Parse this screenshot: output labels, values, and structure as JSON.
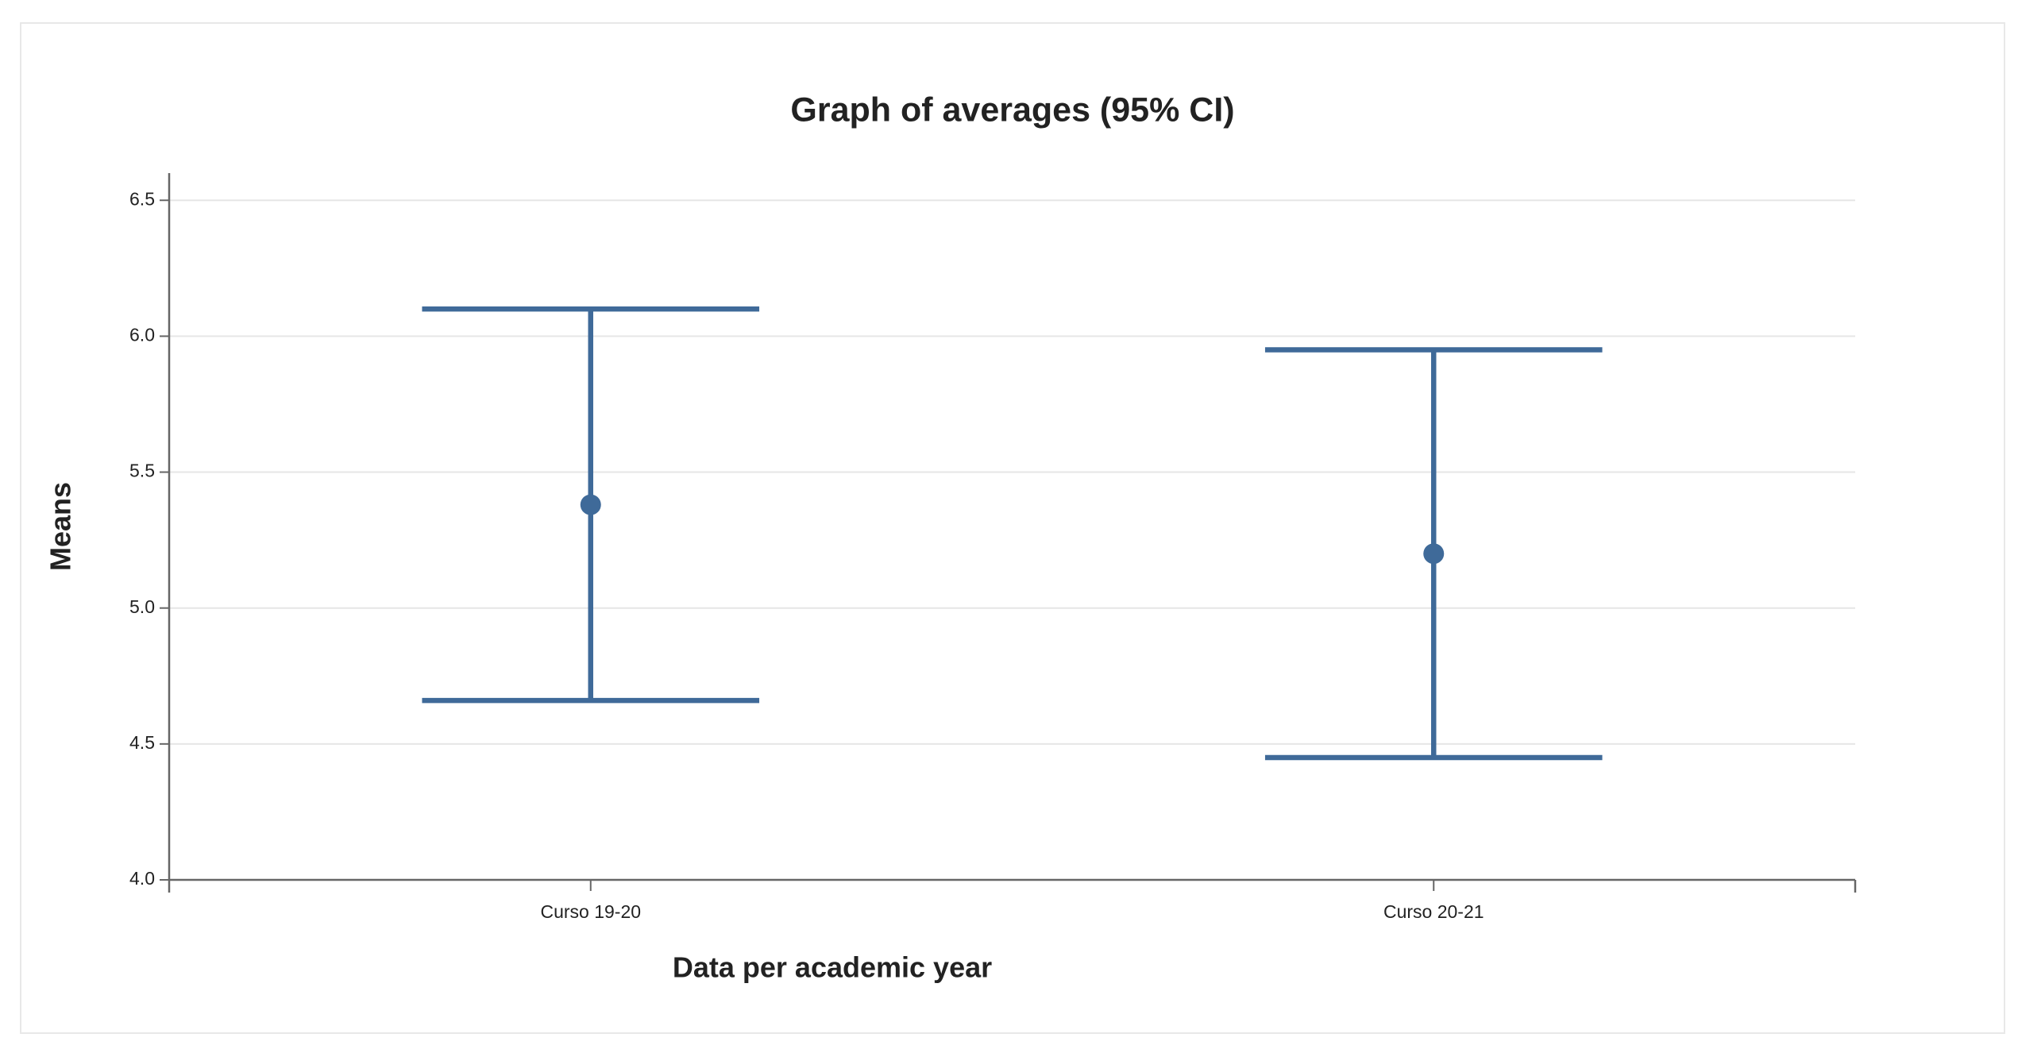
{
  "chart_data": {
    "type": "errorbar",
    "title": "Graph of averages (95% CI)",
    "x_label": "Data per academic year",
    "y_label": "Means",
    "categories": [
      "Curso 19-20",
      "Curso 20-21"
    ],
    "values": [
      5.38,
      5.2
    ],
    "errors": [
      0.72,
      0.75
    ],
    "color": "#3f6a99",
    "ylim": [
      4.0,
      6.6
    ],
    "yticks": [
      {
        "value": 4,
        "label": "4.0"
      },
      4.5,
      {
        "value": 5,
        "label": "5.0"
      },
      5.5,
      {
        "value": 6,
        "label": "6.0"
      },
      6.5
    ],
    "grid": true
  }
}
